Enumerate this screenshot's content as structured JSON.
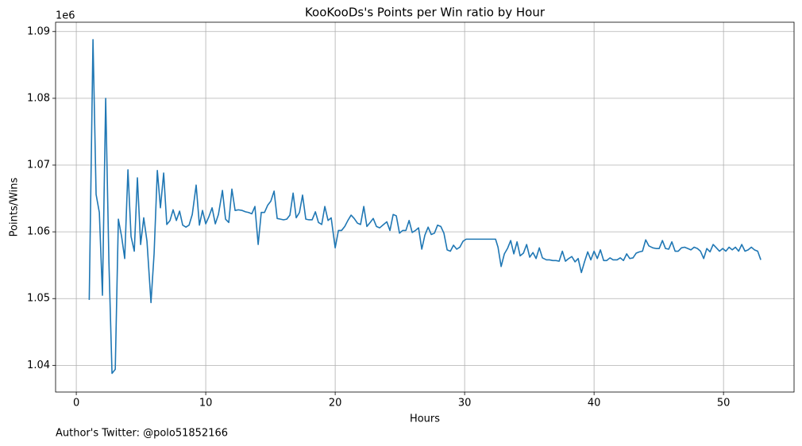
{
  "chart_data": {
    "type": "line",
    "title": "KooKooDs's Points per Win ratio by Hour",
    "x_label": "Hours",
    "y_label": "Points/Wins",
    "y_offset_label": "1e6",
    "footnote": "Author's Twitter: @polo51852166",
    "color": "#1f77b4",
    "grid": true,
    "xlim": [
      -1.6,
      55.45
    ],
    "ylim": [
      1.036,
      1.0914
    ],
    "xticks": [
      0,
      10,
      20,
      30,
      40,
      50
    ],
    "yticks": [
      1.04,
      1.05,
      1.06,
      1.07,
      1.08,
      1.09
    ],
    "x": [
      1.0,
      1.29,
      1.53,
      1.78,
      2.02,
      2.27,
      2.52,
      2.76,
      3.01,
      3.25,
      3.5,
      3.74,
      3.99,
      4.23,
      4.48,
      4.72,
      4.97,
      5.21,
      5.46,
      5.77,
      6.01,
      6.26,
      6.5,
      6.75,
      6.99,
      7.24,
      7.48,
      7.73,
      7.98,
      8.22,
      8.47,
      8.71,
      8.96,
      9.26,
      9.51,
      9.75,
      10.0,
      10.25,
      10.49,
      10.74,
      10.98,
      11.29,
      11.53,
      11.78,
      12.02,
      12.27,
      12.52,
      12.82,
      13.07,
      13.31,
      13.56,
      13.8,
      14.05,
      14.29,
      14.54,
      14.79,
      15.03,
      15.28,
      15.52,
      15.77,
      16.01,
      16.26,
      16.5,
      16.75,
      16.99,
      17.24,
      17.48,
      17.73,
      17.98,
      18.22,
      18.47,
      18.71,
      18.96,
      19.2,
      19.45,
      19.69,
      20.0,
      20.25,
      20.49,
      20.74,
      20.98,
      21.23,
      21.47,
      21.72,
      21.96,
      22.21,
      22.45,
      22.7,
      22.94,
      23.19,
      23.44,
      23.74,
      23.99,
      24.23,
      24.48,
      24.72,
      24.97,
      25.21,
      25.46,
      25.71,
      25.95,
      26.2,
      26.44,
      26.69,
      26.93,
      27.18,
      27.42,
      27.67,
      27.91,
      28.16,
      28.4,
      28.65,
      28.9,
      29.14,
      29.39,
      29.63,
      29.88,
      30.12,
      32.39,
      32.58,
      32.82,
      33.07,
      33.31,
      33.56,
      33.8,
      34.05,
      34.29,
      34.54,
      34.79,
      35.03,
      35.28,
      35.52,
      35.77,
      36.01,
      36.32,
      36.56,
      36.81,
      37.06,
      37.3,
      37.55,
      37.79,
      38.04,
      38.28,
      38.53,
      38.77,
      39.02,
      39.26,
      39.51,
      39.75,
      40.0,
      40.25,
      40.49,
      40.74,
      40.98,
      41.23,
      41.47,
      41.78,
      42.02,
      42.27,
      42.52,
      42.76,
      43.01,
      43.25,
      43.5,
      43.74,
      43.99,
      44.23,
      44.54,
      44.79,
      45.03,
      45.28,
      45.52,
      45.77,
      46.01,
      46.26,
      46.5,
      46.75,
      46.99,
      47.24,
      47.48,
      47.73,
      47.98,
      48.22,
      48.47,
      48.71,
      48.96,
      49.2,
      49.45,
      49.69,
      49.94,
      50.18,
      50.43,
      50.67,
      50.92,
      51.17,
      51.41,
      51.66,
      51.9,
      52.15,
      52.39,
      52.64,
      52.88
    ],
    "values": [
      1.0498,
      1.0888,
      1.0656,
      1.0629,
      1.0505,
      1.08,
      1.0555,
      1.0388,
      1.0394,
      1.0619,
      1.0593,
      1.056,
      1.0693,
      1.0593,
      1.0571,
      1.0681,
      1.0581,
      1.0621,
      1.0586,
      1.0494,
      1.0567,
      1.0692,
      1.0636,
      1.0688,
      1.0611,
      1.0617,
      1.0633,
      1.0617,
      1.0631,
      1.061,
      1.0607,
      1.061,
      1.0626,
      1.067,
      1.061,
      1.0632,
      1.0612,
      1.0623,
      1.0636,
      1.0612,
      1.0626,
      1.0662,
      1.0619,
      1.0614,
      1.0664,
      1.0632,
      1.0633,
      1.0632,
      1.063,
      1.0629,
      1.0627,
      1.0638,
      1.0581,
      1.0629,
      1.0629,
      1.064,
      1.0646,
      1.0661,
      1.062,
      1.0619,
      1.0618,
      1.0619,
      1.0625,
      1.0658,
      1.0621,
      1.0629,
      1.0655,
      1.0619,
      1.0618,
      1.0618,
      1.063,
      1.0614,
      1.0611,
      1.0638,
      1.0617,
      1.0621,
      1.0576,
      1.0602,
      1.0602,
      1.0608,
      1.0617,
      1.0625,
      1.062,
      1.0613,
      1.0611,
      1.0638,
      1.0608,
      1.0614,
      1.062,
      1.0608,
      1.0606,
      1.0611,
      1.0615,
      1.0602,
      1.0626,
      1.0624,
      1.0598,
      1.0602,
      1.0602,
      1.0617,
      1.0599,
      1.0602,
      1.0606,
      1.0574,
      1.0595,
      1.0607,
      1.0596,
      1.0598,
      1.061,
      1.0608,
      1.0598,
      1.0573,
      1.0571,
      1.058,
      1.0574,
      1.0577,
      1.0586,
      1.0589,
      1.0589,
      1.0577,
      1.0548,
      1.0567,
      1.0575,
      1.0587,
      1.0567,
      1.0585,
      1.0564,
      1.0568,
      1.0581,
      1.0562,
      1.0569,
      1.056,
      1.0576,
      1.0561,
      1.0558,
      1.0558,
      1.0557,
      1.0557,
      1.0556,
      1.0571,
      1.0556,
      1.056,
      1.0563,
      1.0555,
      1.056,
      1.0539,
      1.0555,
      1.057,
      1.0558,
      1.0571,
      1.056,
      1.0573,
      1.0557,
      1.0557,
      1.0561,
      1.0558,
      1.0558,
      1.0561,
      1.0557,
      1.0567,
      1.056,
      1.0561,
      1.0568,
      1.057,
      1.0571,
      1.0588,
      1.0579,
      1.0576,
      1.0575,
      1.0575,
      1.0587,
      1.0575,
      1.0574,
      1.0585,
      1.0571,
      1.0571,
      1.0576,
      1.0577,
      1.0575,
      1.0573,
      1.0577,
      1.0575,
      1.0571,
      1.056,
      1.0575,
      1.057,
      1.0581,
      1.0576,
      1.0571,
      1.0575,
      1.0571,
      1.0577,
      1.0573,
      1.0577,
      1.0571,
      1.0581,
      1.0571,
      1.0573,
      1.0577,
      1.0573,
      1.0571,
      1.0558
    ]
  }
}
